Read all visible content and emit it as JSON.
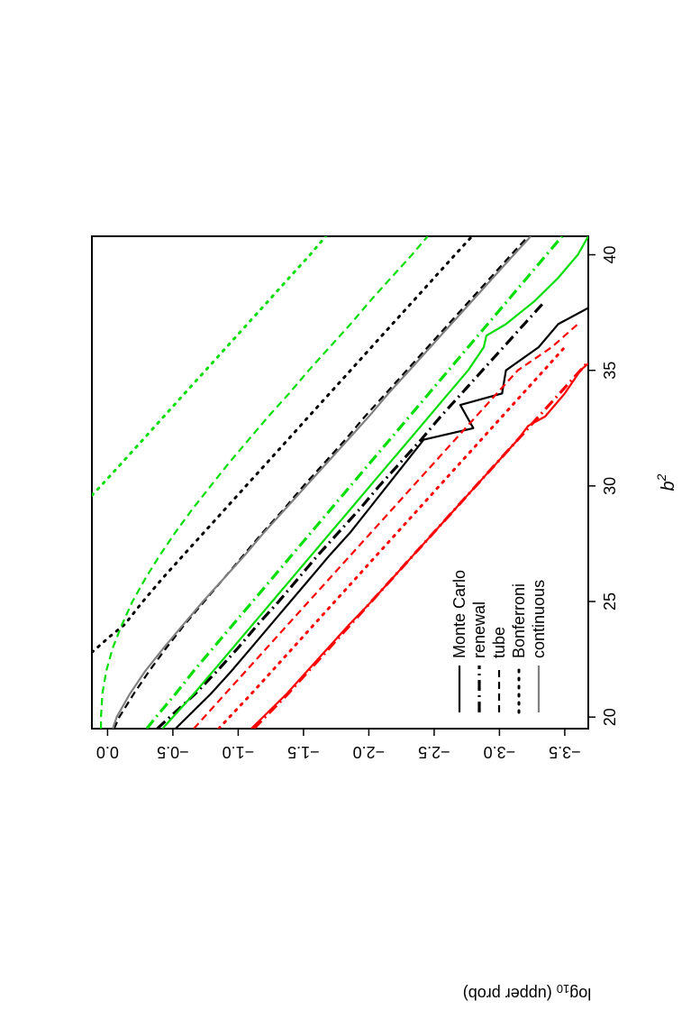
{
  "chart_data": {
    "type": "line",
    "orientation": "rotated-90-clockwise",
    "xlabel": "b",
    "xlabel_superscript": "2",
    "ylabel_main": "log",
    "ylabel_sub": "10",
    "ylabel_rest": " (upper prob)",
    "xlim": [
      19.5,
      40.8
    ],
    "ylim": [
      -3.68,
      0.12
    ],
    "x_ticks": [
      20,
      25,
      30,
      35,
      40
    ],
    "x_tick_labels": [
      "20",
      "25",
      "30",
      "35",
      "40"
    ],
    "y_ticks": [
      0.0,
      -0.5,
      -1.0,
      -1.5,
      -2.0,
      -2.5,
      -3.0,
      -3.5
    ],
    "y_tick_labels": [
      "0.0",
      "−0.5",
      "−1.0",
      "−1.5",
      "−2.0",
      "−2.5",
      "−3.0",
      "−3.5"
    ],
    "grid": false,
    "legend_position": "bottom-left of plot",
    "legend": [
      {
        "label": "Monte Carlo",
        "style": "solid"
      },
      {
        "label": "renewal",
        "style": "dotdash"
      },
      {
        "label": "tube",
        "style": "dashed"
      },
      {
        "label": "Bonferroni",
        "style": "dotted"
      },
      {
        "label": "continuous",
        "style": "solid-gray"
      }
    ],
    "series": [
      {
        "color": "#000000",
        "style": "solid",
        "x": [
          19.5,
          21,
          22,
          23,
          24,
          25,
          26,
          27,
          28,
          29,
          30,
          31,
          32,
          32.5,
          33.5,
          34,
          35,
          36,
          37,
          37.7
        ],
        "y": [
          -0.52,
          -0.79,
          -0.95,
          -1.1,
          -1.25,
          -1.4,
          -1.55,
          -1.7,
          -1.86,
          -2.0,
          -2.14,
          -2.28,
          -2.42,
          -2.8,
          -2.7,
          -3.02,
          -3.05,
          -3.3,
          -3.45,
          -3.68
        ]
      },
      {
        "color": "#000000",
        "style": "dotdash",
        "x": [
          19.5,
          21,
          22,
          23,
          24,
          25,
          26,
          27,
          28,
          29,
          30,
          31,
          32,
          33,
          34,
          35,
          36,
          37,
          38
        ],
        "y": [
          -0.38,
          -0.67,
          -0.84,
          -1.0,
          -1.15,
          -1.31,
          -1.46,
          -1.61,
          -1.77,
          -1.93,
          -2.08,
          -2.24,
          -2.4,
          -2.55,
          -2.71,
          -2.87,
          -3.03,
          -3.19,
          -3.35
        ]
      },
      {
        "color": "#000000",
        "style": "dashed",
        "x": [
          19.5,
          20,
          21,
          22,
          23,
          24,
          25,
          26,
          27,
          28,
          29,
          30,
          31,
          32,
          33,
          34,
          35,
          36,
          37,
          38,
          39,
          40,
          40.8
        ],
        "y": [
          -0.05,
          -0.09,
          -0.2,
          -0.32,
          -0.45,
          -0.59,
          -0.74,
          -0.89,
          -1.04,
          -1.19,
          -1.35,
          -1.5,
          -1.66,
          -1.82,
          -1.97,
          -2.13,
          -2.29,
          -2.45,
          -2.61,
          -2.77,
          -2.93,
          -3.09,
          -3.22
        ]
      },
      {
        "color": "#000000",
        "style": "dotted",
        "x": [
          22.8,
          23.5,
          24,
          25,
          26,
          27,
          28,
          29,
          30,
          31,
          32,
          33,
          34,
          35,
          36,
          37,
          38,
          39,
          40,
          40.8
        ],
        "y": [
          0.12,
          -0.02,
          -0.13,
          -0.27,
          -0.42,
          -0.58,
          -0.74,
          -0.9,
          -1.06,
          -1.22,
          -1.38,
          -1.54,
          -1.7,
          -1.86,
          -2.02,
          -2.18,
          -2.34,
          -2.5,
          -2.66,
          -2.79
        ]
      },
      {
        "color": "#808080",
        "style": "solid",
        "x": [
          19.5,
          20,
          21,
          22,
          23,
          24,
          25,
          26,
          27,
          28,
          29,
          30,
          31,
          32,
          33,
          34,
          35,
          36,
          37,
          38,
          39,
          40,
          40.8
        ],
        "y": [
          -0.04,
          -0.07,
          -0.17,
          -0.29,
          -0.43,
          -0.58,
          -0.73,
          -0.89,
          -1.05,
          -1.2,
          -1.36,
          -1.52,
          -1.68,
          -1.84,
          -2.0,
          -2.15,
          -2.31,
          -2.47,
          -2.63,
          -2.79,
          -2.95,
          -3.11,
          -3.24
        ]
      },
      {
        "color": "#ff0000",
        "style": "solid",
        "x": [
          19.5,
          21,
          22,
          23,
          24,
          25,
          26,
          27,
          28,
          29,
          30,
          31,
          32,
          32.6,
          33,
          34,
          35,
          35.3
        ],
        "y": [
          -1.1,
          -1.37,
          -1.53,
          -1.69,
          -1.85,
          -2.02,
          -2.18,
          -2.34,
          -2.5,
          -2.66,
          -2.82,
          -2.98,
          -3.14,
          -3.22,
          -3.35,
          -3.5,
          -3.62,
          -3.68
        ]
      },
      {
        "color": "#ff0000",
        "style": "dotdash",
        "x": [
          19.5,
          21,
          22,
          23,
          24,
          25,
          26,
          27,
          28,
          29,
          30,
          31,
          32,
          33,
          34,
          35,
          36,
          37
        ],
        "y": [
          -1.12,
          -1.38,
          -1.54,
          -1.7,
          -1.86,
          -2.02,
          -2.18,
          -2.34,
          -2.5,
          -2.66,
          -2.82,
          -2.98,
          -3.14,
          -3.3,
          -3.46,
          -3.62,
          -3.78,
          -3.94
        ]
      },
      {
        "color": "#ff0000",
        "style": "dashed",
        "x": [
          19.5,
          21,
          22,
          23,
          24,
          25,
          26,
          27,
          28,
          29,
          30,
          31,
          32,
          33,
          34,
          35,
          36,
          37
        ],
        "y": [
          -0.66,
          -0.9,
          -1.06,
          -1.22,
          -1.38,
          -1.54,
          -1.7,
          -1.86,
          -2.02,
          -2.18,
          -2.34,
          -2.5,
          -2.66,
          -2.82,
          -2.98,
          -3.14,
          -3.4,
          -3.6
        ]
      },
      {
        "color": "#ff0000",
        "style": "dotted",
        "x": [
          19.5,
          21,
          22,
          23,
          24,
          25,
          26,
          27,
          28,
          29,
          30,
          31,
          32,
          33,
          34,
          35,
          36
        ],
        "y": [
          -0.85,
          -1.1,
          -1.26,
          -1.42,
          -1.58,
          -1.74,
          -1.9,
          -2.06,
          -2.22,
          -2.38,
          -2.54,
          -2.7,
          -2.86,
          -3.02,
          -3.18,
          -3.34,
          -3.5
        ]
      },
      {
        "color": "#00dd00",
        "style": "solid",
        "x": [
          19.5,
          20,
          21,
          22,
          23,
          24,
          25,
          26,
          27,
          28,
          29,
          30,
          31,
          32,
          33,
          34,
          35,
          36,
          36.5,
          37,
          38,
          39,
          40,
          40.8
        ],
        "y": [
          -0.42,
          -0.5,
          -0.66,
          -0.81,
          -0.96,
          -1.11,
          -1.26,
          -1.41,
          -1.56,
          -1.71,
          -1.86,
          -2.01,
          -2.16,
          -2.31,
          -2.46,
          -2.61,
          -2.76,
          -2.88,
          -2.9,
          -3.05,
          -3.27,
          -3.45,
          -3.6,
          -3.68
        ]
      },
      {
        "color": "#00dd00",
        "style": "dotdash",
        "x": [
          19.5,
          20,
          21,
          22,
          23,
          24,
          25,
          26,
          27,
          28,
          29,
          30,
          31,
          32,
          33,
          34,
          35,
          36,
          37,
          38,
          39,
          40,
          40.8
        ],
        "y": [
          -0.3,
          -0.37,
          -0.52,
          -0.66,
          -0.81,
          -0.96,
          -1.11,
          -1.26,
          -1.41,
          -1.56,
          -1.71,
          -1.86,
          -2.01,
          -2.16,
          -2.31,
          -2.46,
          -2.61,
          -2.76,
          -2.91,
          -3.06,
          -3.21,
          -3.36,
          -3.48
        ]
      },
      {
        "color": "#00dd00",
        "style": "dashed",
        "x": [
          19.5,
          20,
          21,
          22,
          23,
          24,
          25,
          26,
          27,
          28,
          29,
          30,
          31,
          32,
          33,
          34,
          35,
          36,
          37,
          38,
          39,
          40,
          40.8
        ],
        "y": [
          0.05,
          0.05,
          0.04,
          0.01,
          -0.04,
          -0.11,
          -0.19,
          -0.29,
          -0.4,
          -0.52,
          -0.65,
          -0.79,
          -0.93,
          -1.08,
          -1.23,
          -1.39,
          -1.54,
          -1.7,
          -1.86,
          -2.01,
          -2.17,
          -2.33,
          -2.45
        ]
      },
      {
        "color": "#00dd00",
        "style": "dotted",
        "x": [
          29.6,
          30,
          31,
          32,
          33,
          34,
          35,
          36,
          37,
          38,
          39,
          40,
          40.8
        ],
        "y": [
          0.12,
          0.05,
          -0.11,
          -0.27,
          -0.43,
          -0.59,
          -0.75,
          -0.91,
          -1.07,
          -1.23,
          -1.39,
          -1.55,
          -1.67
        ]
      }
    ]
  }
}
